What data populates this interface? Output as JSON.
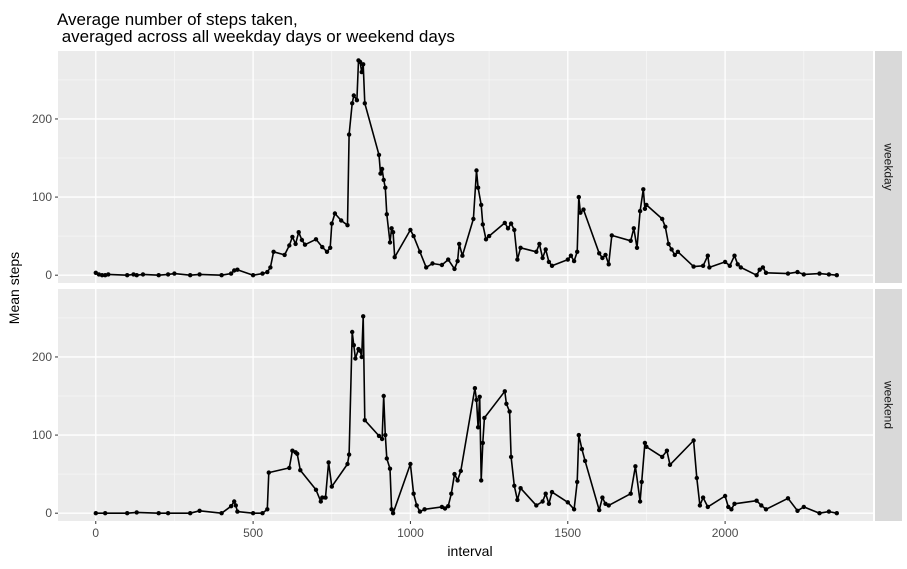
{
  "chart_data": {
    "type": "line",
    "title": "Average number of steps taken,\n averaged across all weekday days or weekend days",
    "xlabel": "interval",
    "ylabel": "Mean steps",
    "xlim": [
      -120,
      2470
    ],
    "ylim": [
      -10,
      287
    ],
    "x_ticks": [
      0,
      500,
      1000,
      1500,
      2000
    ],
    "y_ticks": [
      0,
      100,
      200
    ],
    "grid": true,
    "facets": [
      {
        "name": "weekday",
        "points": [
          [
            0,
            3
          ],
          [
            10,
            1
          ],
          [
            20,
            0
          ],
          [
            30,
            0
          ],
          [
            40,
            1
          ],
          [
            100,
            0
          ],
          [
            120,
            1
          ],
          [
            130,
            0
          ],
          [
            150,
            1
          ],
          [
            200,
            0
          ],
          [
            230,
            1
          ],
          [
            250,
            2
          ],
          [
            300,
            0
          ],
          [
            330,
            1
          ],
          [
            400,
            0
          ],
          [
            430,
            2
          ],
          [
            440,
            6
          ],
          [
            450,
            7
          ],
          [
            500,
            0
          ],
          [
            530,
            2
          ],
          [
            545,
            4
          ],
          [
            555,
            10
          ],
          [
            565,
            30
          ],
          [
            600,
            26
          ],
          [
            615,
            38
          ],
          [
            625,
            49
          ],
          [
            635,
            40
          ],
          [
            645,
            55
          ],
          [
            655,
            45
          ],
          [
            665,
            39
          ],
          [
            700,
            46
          ],
          [
            720,
            36
          ],
          [
            735,
            30
          ],
          [
            745,
            35
          ],
          [
            750,
            66
          ],
          [
            760,
            79
          ],
          [
            780,
            70
          ],
          [
            800,
            64
          ],
          [
            805,
            180
          ],
          [
            815,
            220
          ],
          [
            820,
            230
          ],
          [
            830,
            224
          ],
          [
            835,
            275
          ],
          [
            840,
            273
          ],
          [
            845,
            260
          ],
          [
            850,
            270
          ],
          [
            855,
            220
          ],
          [
            900,
            154
          ],
          [
            905,
            130
          ],
          [
            910,
            136
          ],
          [
            915,
            122
          ],
          [
            920,
            112
          ],
          [
            925,
            78
          ],
          [
            935,
            42
          ],
          [
            940,
            60
          ],
          [
            945,
            55
          ],
          [
            950,
            23
          ],
          [
            1000,
            58
          ],
          [
            1010,
            50
          ],
          [
            1030,
            30
          ],
          [
            1050,
            10
          ],
          [
            1070,
            15
          ],
          [
            1100,
            13
          ],
          [
            1120,
            20
          ],
          [
            1140,
            8
          ],
          [
            1150,
            18
          ],
          [
            1155,
            40
          ],
          [
            1165,
            25
          ],
          [
            1200,
            72
          ],
          [
            1210,
            134
          ],
          [
            1215,
            112
          ],
          [
            1225,
            90
          ],
          [
            1230,
            65
          ],
          [
            1240,
            46
          ],
          [
            1250,
            50
          ],
          [
            1300,
            67
          ],
          [
            1310,
            60
          ],
          [
            1320,
            66
          ],
          [
            1330,
            58
          ],
          [
            1340,
            20
          ],
          [
            1350,
            35
          ],
          [
            1400,
            30
          ],
          [
            1410,
            40
          ],
          [
            1420,
            22
          ],
          [
            1430,
            33
          ],
          [
            1440,
            17
          ],
          [
            1450,
            12
          ],
          [
            1500,
            20
          ],
          [
            1510,
            25
          ],
          [
            1520,
            18
          ],
          [
            1530,
            30
          ],
          [
            1535,
            100
          ],
          [
            1540,
            80
          ],
          [
            1550,
            84
          ],
          [
            1600,
            28
          ],
          [
            1610,
            22
          ],
          [
            1620,
            26
          ],
          [
            1630,
            14
          ],
          [
            1640,
            51
          ],
          [
            1700,
            44
          ],
          [
            1710,
            60
          ],
          [
            1720,
            35
          ],
          [
            1730,
            82
          ],
          [
            1740,
            110
          ],
          [
            1745,
            85
          ],
          [
            1750,
            90
          ],
          [
            1800,
            72
          ],
          [
            1810,
            62
          ],
          [
            1820,
            40
          ],
          [
            1830,
            33
          ],
          [
            1840,
            26
          ],
          [
            1850,
            30
          ],
          [
            1900,
            11
          ],
          [
            1930,
            12
          ],
          [
            1945,
            25
          ],
          [
            1950,
            10
          ],
          [
            2000,
            17
          ],
          [
            2015,
            12
          ],
          [
            2030,
            25
          ],
          [
            2040,
            14
          ],
          [
            2050,
            10
          ],
          [
            2100,
            0
          ],
          [
            2110,
            7
          ],
          [
            2120,
            10
          ],
          [
            2130,
            3
          ],
          [
            2200,
            2
          ],
          [
            2230,
            4
          ],
          [
            2250,
            1
          ],
          [
            2300,
            2
          ],
          [
            2330,
            1
          ],
          [
            2355,
            0
          ]
        ]
      },
      {
        "name": "weekend",
        "points": [
          [
            0,
            0
          ],
          [
            30,
            0
          ],
          [
            100,
            0
          ],
          [
            130,
            1
          ],
          [
            200,
            0
          ],
          [
            230,
            0
          ],
          [
            300,
            0
          ],
          [
            330,
            3
          ],
          [
            400,
            0
          ],
          [
            430,
            9
          ],
          [
            440,
            15
          ],
          [
            445,
            10
          ],
          [
            450,
            2
          ],
          [
            500,
            0
          ],
          [
            530,
            0
          ],
          [
            545,
            5
          ],
          [
            550,
            52
          ],
          [
            615,
            58
          ],
          [
            625,
            80
          ],
          [
            635,
            78
          ],
          [
            640,
            76
          ],
          [
            650,
            55
          ],
          [
            700,
            30
          ],
          [
            715,
            15
          ],
          [
            720,
            20
          ],
          [
            730,
            20
          ],
          [
            740,
            65
          ],
          [
            750,
            34
          ],
          [
            800,
            63
          ],
          [
            805,
            75
          ],
          [
            815,
            232
          ],
          [
            820,
            215
          ],
          [
            825,
            198
          ],
          [
            835,
            210
          ],
          [
            840,
            208
          ],
          [
            845,
            200
          ],
          [
            850,
            252
          ],
          [
            855,
            119
          ],
          [
            900,
            99
          ],
          [
            910,
            95
          ],
          [
            915,
            150
          ],
          [
            920,
            100
          ],
          [
            925,
            70
          ],
          [
            935,
            57
          ],
          [
            940,
            5
          ],
          [
            945,
            0
          ],
          [
            1000,
            63
          ],
          [
            1010,
            25
          ],
          [
            1020,
            10
          ],
          [
            1030,
            2
          ],
          [
            1045,
            5
          ],
          [
            1100,
            8
          ],
          [
            1110,
            6
          ],
          [
            1120,
            9
          ],
          [
            1130,
            25
          ],
          [
            1140,
            50
          ],
          [
            1150,
            42
          ],
          [
            1160,
            54
          ],
          [
            1205,
            160
          ],
          [
            1210,
            145
          ],
          [
            1215,
            110
          ],
          [
            1220,
            149
          ],
          [
            1225,
            42
          ],
          [
            1230,
            90
          ],
          [
            1235,
            122
          ],
          [
            1300,
            156
          ],
          [
            1305,
            140
          ],
          [
            1315,
            130
          ],
          [
            1320,
            72
          ],
          [
            1330,
            35
          ],
          [
            1340,
            17
          ],
          [
            1350,
            32
          ],
          [
            1400,
            10
          ],
          [
            1420,
            15
          ],
          [
            1430,
            25
          ],
          [
            1440,
            12
          ],
          [
            1450,
            27
          ],
          [
            1500,
            14
          ],
          [
            1520,
            5
          ],
          [
            1530,
            40
          ],
          [
            1535,
            100
          ],
          [
            1545,
            82
          ],
          [
            1555,
            67
          ],
          [
            1600,
            4
          ],
          [
            1610,
            20
          ],
          [
            1620,
            12
          ],
          [
            1630,
            10
          ],
          [
            1700,
            25
          ],
          [
            1715,
            60
          ],
          [
            1730,
            15
          ],
          [
            1735,
            40
          ],
          [
            1745,
            90
          ],
          [
            1750,
            85
          ],
          [
            1800,
            72
          ],
          [
            1815,
            80
          ],
          [
            1825,
            62
          ],
          [
            1900,
            93
          ],
          [
            1910,
            45
          ],
          [
            1920,
            10
          ],
          [
            1930,
            20
          ],
          [
            1945,
            8
          ],
          [
            2000,
            22
          ],
          [
            2010,
            8
          ],
          [
            2020,
            5
          ],
          [
            2030,
            12
          ],
          [
            2100,
            16
          ],
          [
            2115,
            10
          ],
          [
            2130,
            5
          ],
          [
            2200,
            19
          ],
          [
            2230,
            3
          ],
          [
            2250,
            8
          ],
          [
            2300,
            0
          ],
          [
            2330,
            2
          ],
          [
            2355,
            0
          ]
        ]
      }
    ]
  },
  "colors": {
    "panel_background": "#ebebeb",
    "strip_background": "#d9d9d9",
    "grid_major": "#ffffff",
    "line": "#000000",
    "point": "#000000",
    "tick_text": "#4d4d4d",
    "title_text": "#000000"
  }
}
